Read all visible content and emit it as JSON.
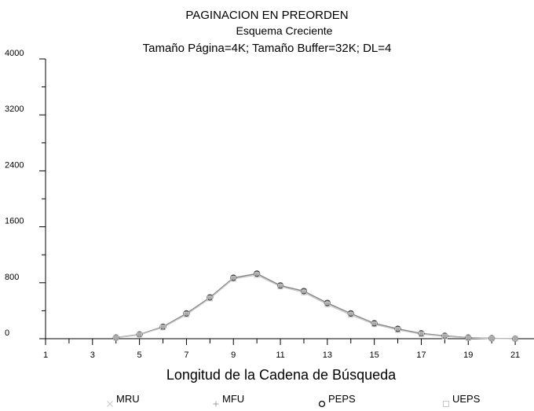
{
  "chart_data": {
    "type": "line",
    "title": "PAGINACION EN PREORDEN",
    "subtitle": "Esquema Creciente",
    "subtitle2": "Tamaño Página=4K; Tamaño Buffer=32K; DL=4",
    "x_label": "Longitud de la Cadena de Búsqueda",
    "x": [
      4,
      5,
      6,
      7,
      8,
      9,
      10,
      11,
      12,
      13,
      14,
      15,
      16,
      17,
      18,
      19,
      20,
      21
    ],
    "series": [
      {
        "name": "MRU",
        "color": "#c8c8c8",
        "values": [
          15,
          60,
          170,
          360,
          590,
          870,
          930,
          760,
          680,
          510,
          360,
          220,
          140,
          75,
          40,
          15,
          5,
          0
        ]
      },
      {
        "name": "MFU",
        "color": "#a0a0a0",
        "values": [
          15,
          60,
          170,
          360,
          590,
          870,
          930,
          760,
          680,
          510,
          360,
          220,
          140,
          75,
          40,
          15,
          5,
          0
        ]
      },
      {
        "name": "PEPS",
        "color": "#000000",
        "values": [
          15,
          60,
          170,
          360,
          590,
          870,
          930,
          760,
          680,
          510,
          360,
          220,
          140,
          75,
          40,
          15,
          5,
          0
        ]
      },
      {
        "name": "UEPS",
        "color": "#c8c8c8",
        "values": [
          12,
          55,
          160,
          345,
          575,
          855,
          910,
          745,
          660,
          490,
          340,
          205,
          125,
          65,
          32,
          10,
          2,
          0
        ]
      }
    ],
    "xlim": [
      1,
      21.8
    ],
    "xticks": [
      1,
      3,
      5,
      7,
      9,
      11,
      13,
      15,
      17,
      19,
      21
    ],
    "xticks_minor": [
      2,
      4,
      6,
      8,
      10,
      12,
      14,
      16,
      18,
      20
    ],
    "ylim": [
      0,
      4000
    ],
    "yticks": [
      0,
      800,
      1600,
      2400,
      3200,
      4000
    ],
    "yticks_minor": [
      400,
      1200,
      2000,
      2800,
      3600
    ]
  }
}
